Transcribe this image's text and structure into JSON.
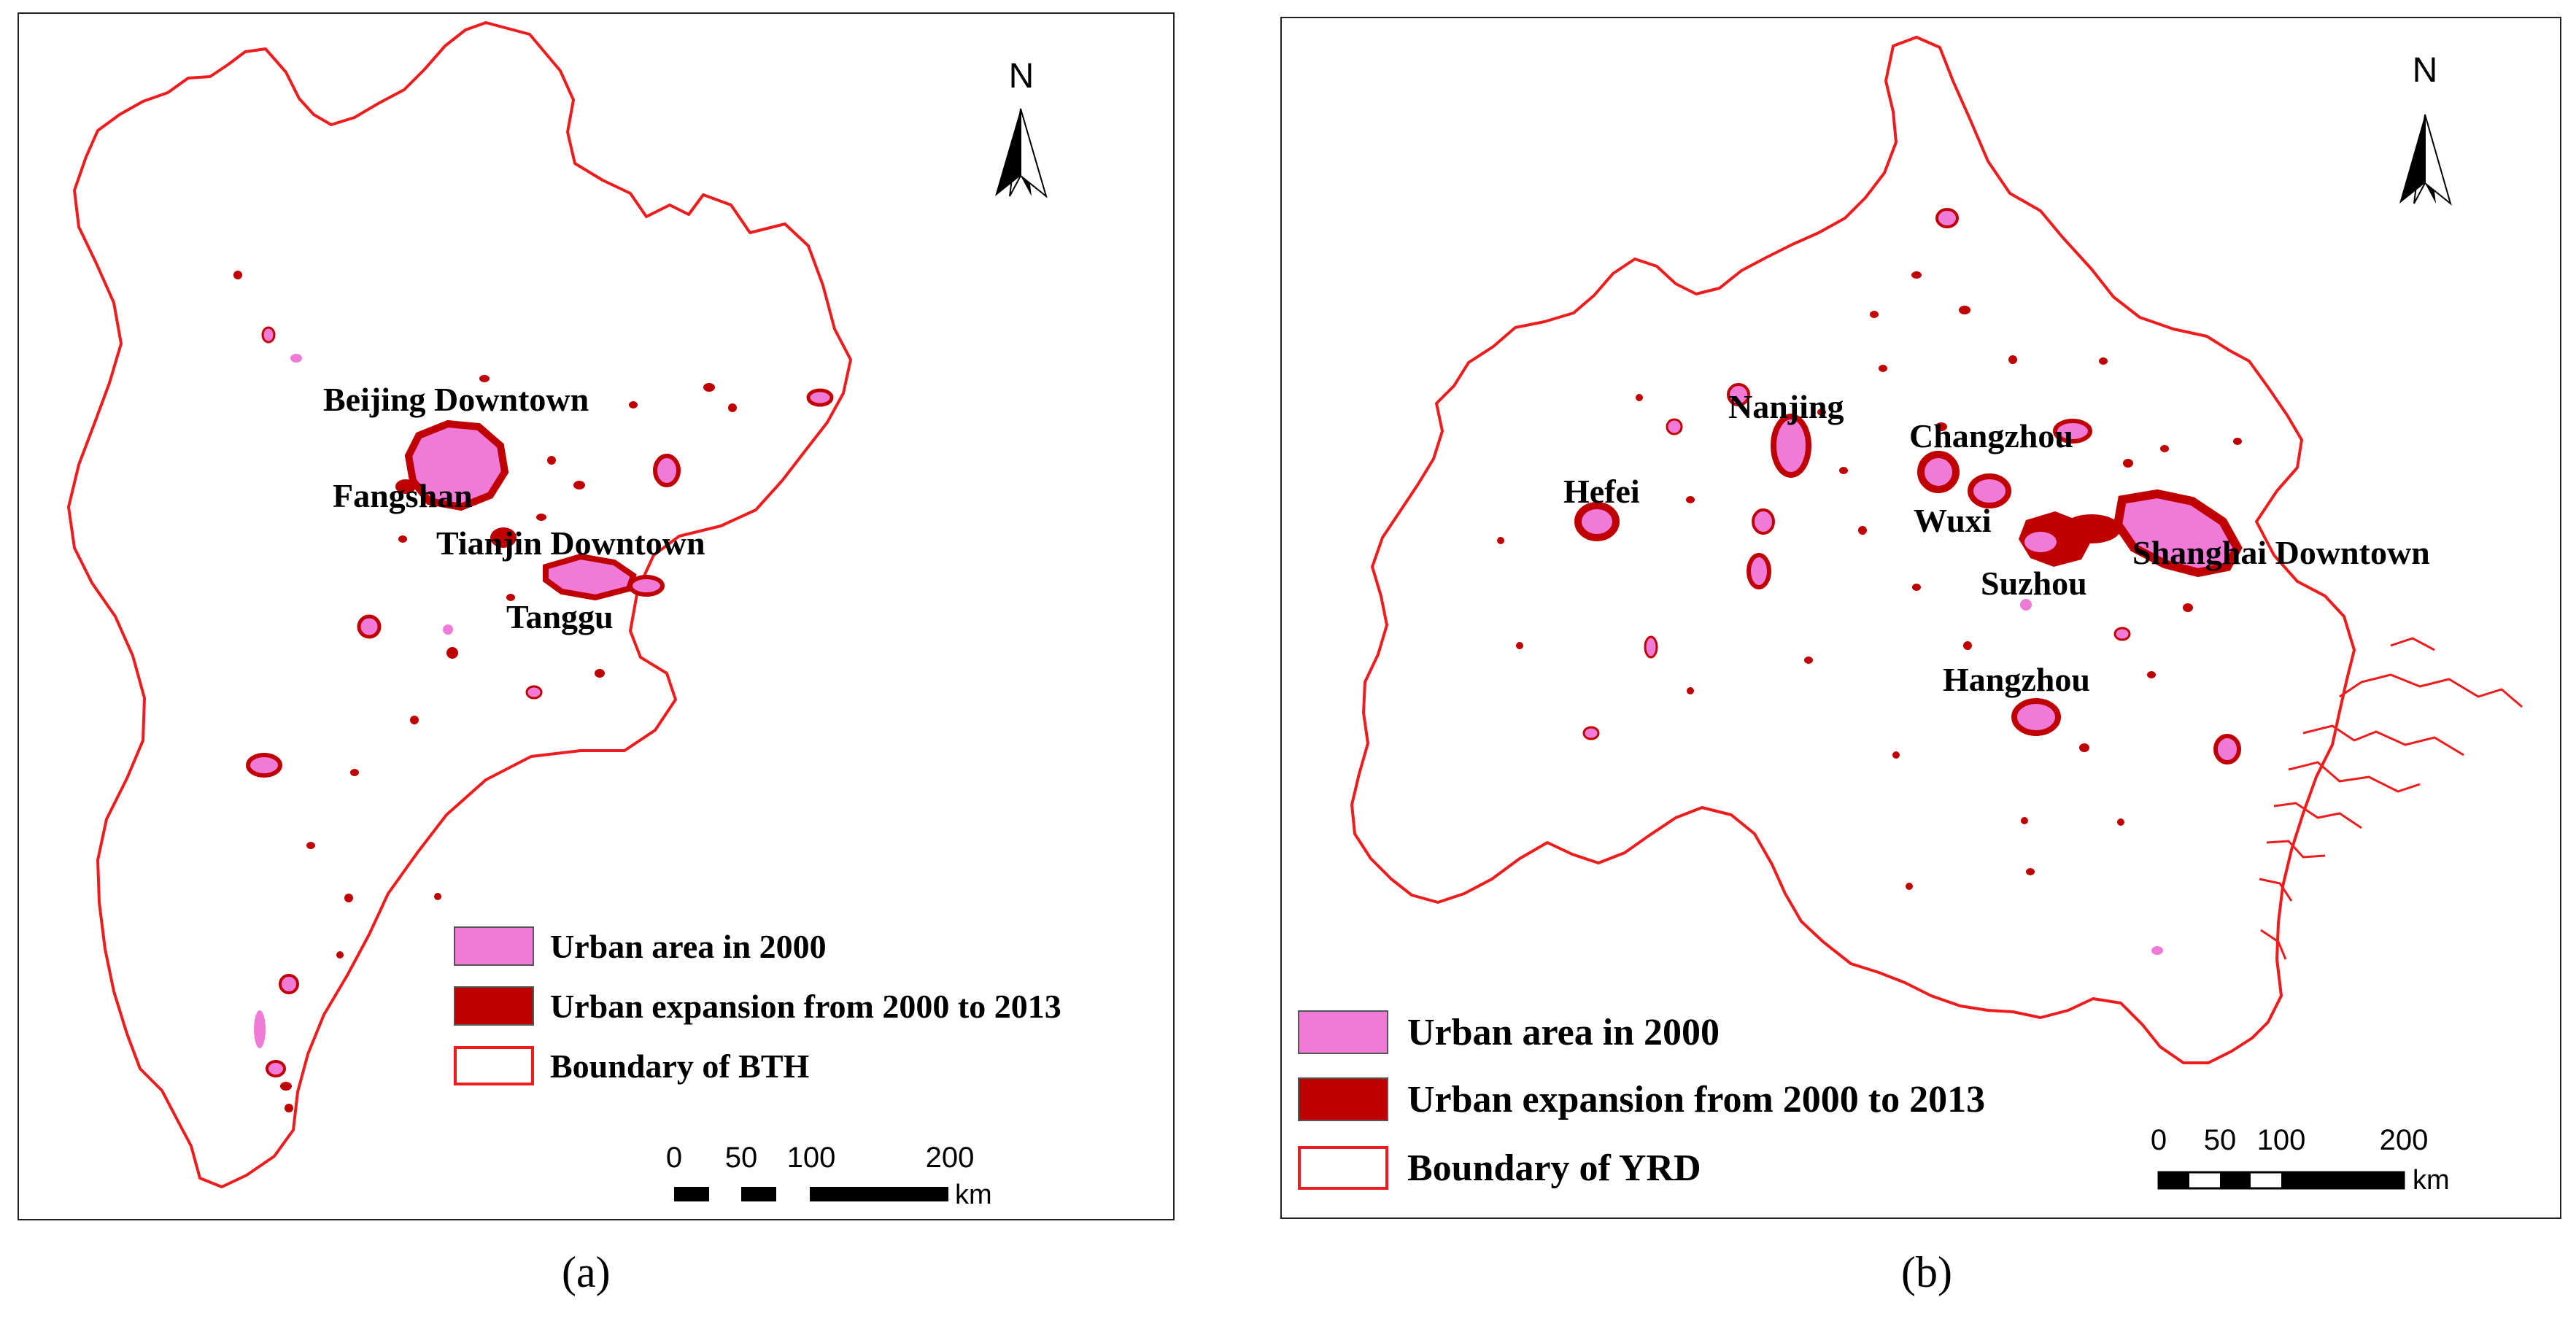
{
  "panels": [
    {
      "caption": "(a)",
      "north_letter": "N",
      "cities": [
        "Beijing Downtown",
        "Fangshan",
        "Tianjin Downtown",
        "Tanggu"
      ],
      "legend": [
        "Urban area in 2000",
        "Urban expansion from 2000 to 2013",
        "Boundary of BTH"
      ],
      "scale": {
        "ticks": [
          "0",
          "50",
          "100",
          "200"
        ],
        "unit": "km"
      }
    },
    {
      "caption": "(b)",
      "north_letter": "N",
      "cities": [
        "Nanjing",
        "Changzhou",
        "Hefei",
        "Wuxi",
        "Shanghai Downtown",
        "Suzhou",
        "Hangzhou"
      ],
      "legend": [
        "Urban area in 2000",
        "Urban expansion from 2000 to 2013",
        "Boundary of YRD"
      ],
      "scale": {
        "ticks": [
          "0",
          "50",
          "100",
          "200"
        ],
        "unit": "km"
      }
    }
  ],
  "colors": {
    "urban_2000": "#f07ad8",
    "urban_expansion": "#c00000",
    "boundary": "#ee1c1c"
  }
}
